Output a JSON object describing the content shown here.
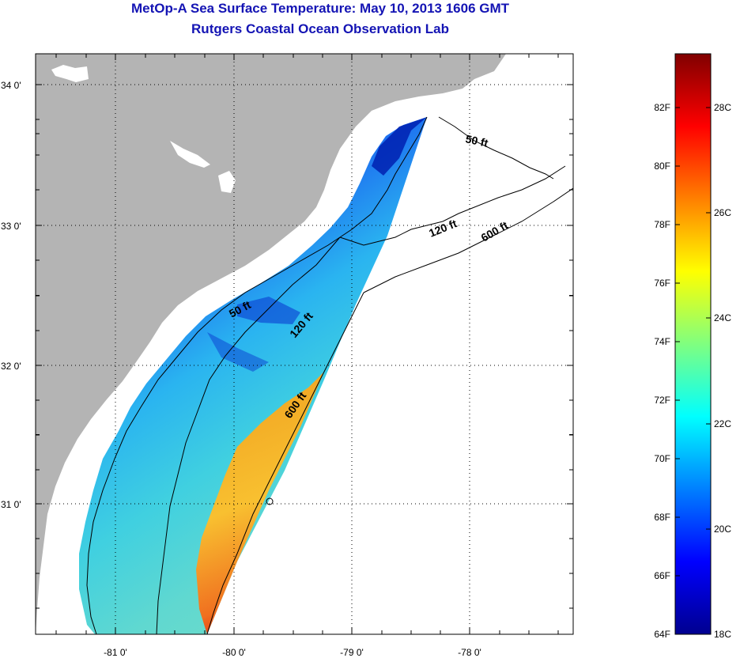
{
  "header": {
    "title": "MetOp-A Sea Surface Temperature:  May 10, 2013 1606 GMT",
    "subtitle": "Rutgers Coastal Ocean Observation Lab"
  },
  "map": {
    "lat_labels": [
      "34 0'",
      "33 0'",
      "32 0'",
      "31 0'"
    ],
    "lon_labels": [
      "-81 0'",
      "-80 0'",
      "-79 0'",
      "-78 0'"
    ],
    "contour_labels": [
      "50 ft",
      "120 ft",
      "600 ft",
      "50 ft",
      "120 ft",
      "600 ft"
    ],
    "land_color": "#b4b4b4",
    "nodata_color": "#ffffff"
  },
  "colorbar": {
    "fahrenheit_labels": [
      "82F",
      "80F",
      "78F",
      "76F",
      "74F",
      "72F",
      "70F",
      "68F",
      "66F",
      "64F"
    ],
    "celsius_labels": [
      "28C",
      "26C",
      "24C",
      "22C",
      "20C",
      "18C"
    ],
    "range_celsius": [
      18,
      29.3
    ]
  }
}
